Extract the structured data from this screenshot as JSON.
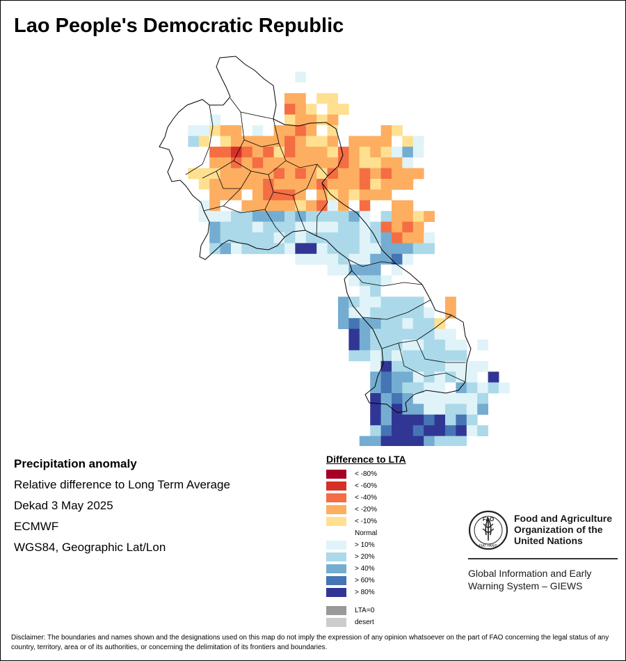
{
  "map": {
    "title": "Lao People's Democratic Republic",
    "anomaly_colors": {
      "lt80": "#a50026",
      "lt60": "#d73027",
      "lt40": "#f46d43",
      "lt20": "#fdae61",
      "lt10": "#fee090",
      "normal": "#ffffff",
      "gt10": "#e0f3f8",
      "gt20": "#abd9e9",
      "gt40": "#74add1",
      "gt60": "#4575b4",
      "gt80": "#313695"
    }
  },
  "info": {
    "heading": "Precipitation anomaly",
    "line1": "Relative difference to Long Term Average",
    "line2": "Dekad 3 May 2025",
    "line3": "ECMWF",
    "line4": "WGS84, Geographic Lat/Lon"
  },
  "legend": {
    "title": "Difference to LTA",
    "items": [
      {
        "label": "< -80%",
        "color": "#a50026"
      },
      {
        "label": "< -60%",
        "color": "#d73027"
      },
      {
        "label": "< -40%",
        "color": "#f46d43"
      },
      {
        "label": "< -20%",
        "color": "#fdae61"
      },
      {
        "label": "< -10%",
        "color": "#fee090"
      },
      {
        "label": "Normal",
        "color": "#ffffff"
      },
      {
        "label": "> 10%",
        "color": "#e0f3f8"
      },
      {
        "label": "> 20%",
        "color": "#abd9e9"
      },
      {
        "label": "> 40%",
        "color": "#74add1"
      },
      {
        "label": "> 60%",
        "color": "#4575b4"
      },
      {
        "label": "> 80%",
        "color": "#313695"
      }
    ],
    "extra": [
      {
        "label": "LTA=0",
        "color": "#999999"
      },
      {
        "label": "desert",
        "color": "#cccccc"
      }
    ]
  },
  "logo": {
    "org_name": "Food and Agriculture Organization of the United Nations",
    "program": "Global Information and Early Warning System – GIEWS",
    "emblem_letters": "FAO",
    "emblem_motto": "FIAT PANIS"
  },
  "disclaimer": "Disclaimer: The boundaries and names shown and the designations used on this map do not imply the expression of any opinion whatsoever on the part of FAO concerning the legal status of any country, territory, area or of its authorities, or concerning the delimitation of its frontiers and boundaries."
}
